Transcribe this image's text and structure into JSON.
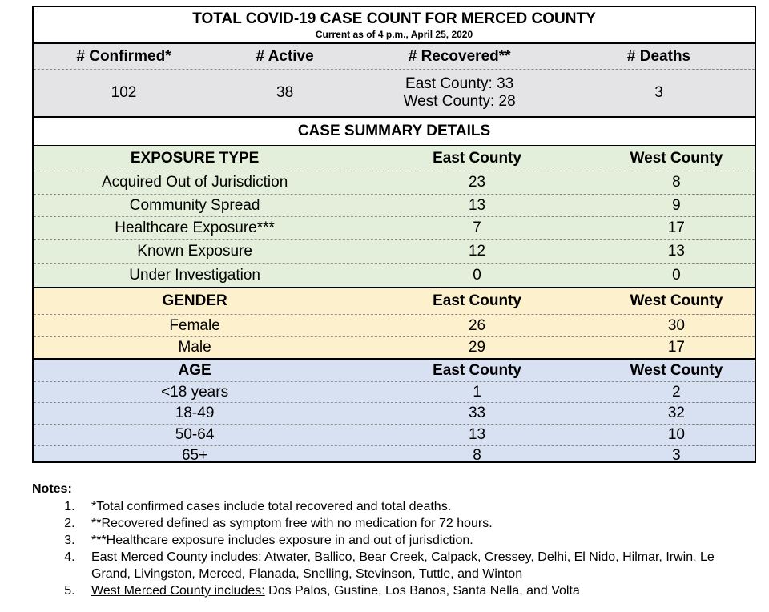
{
  "title": "TOTAL COVID-19 CASE COUNT FOR MERCED COUNTY",
  "subtitle": "Current as of 4 p.m., April 25, 2020",
  "totals": {
    "headers": [
      "# Confirmed*",
      "# Active",
      "# Recovered**",
      "# Deaths"
    ],
    "confirmed": "102",
    "active": "38",
    "recovered_east": "East County: 33",
    "recovered_west": "West County: 28",
    "deaths": "3"
  },
  "summary_title": "CASE SUMMARY DETAILS",
  "exposure": {
    "header": [
      "EXPOSURE TYPE",
      "East County",
      "West County"
    ],
    "rows": [
      [
        "Acquired Out of Jurisdiction",
        "23",
        "8"
      ],
      [
        "Community Spread",
        "13",
        "9"
      ],
      [
        "Healthcare Exposure***",
        "7",
        "17"
      ],
      [
        "Known Exposure",
        "12",
        "13"
      ],
      [
        "Under Investigation",
        "0",
        "0"
      ]
    ]
  },
  "gender": {
    "header": [
      "GENDER",
      "East County",
      "West County"
    ],
    "rows": [
      [
        "Female",
        "26",
        "30"
      ],
      [
        "Male",
        "29",
        "17"
      ]
    ]
  },
  "age": {
    "header": [
      "AGE",
      "East County",
      "West County"
    ],
    "rows": [
      [
        "<18 years",
        "1",
        "2"
      ],
      [
        "18-49",
        "33",
        "32"
      ],
      [
        "50-64",
        "13",
        "10"
      ],
      [
        "65+",
        "8",
        "3"
      ]
    ]
  },
  "notes": {
    "title": "Notes:",
    "items": [
      "*Total confirmed cases include total recovered and total deaths.",
      "**Recovered defined as symptom free with no medication for 72 hours.",
      "***Healthcare exposure includes exposure in and out of jurisdiction."
    ],
    "east_label": "East Merced County includes:",
    "east_text": " Atwater, Ballico, Bear Creek, Calpack, Cressey, Delhi, El Nido, Hilmar, Irwin, Le Grand, Livingston, Merced, Planada, Snelling, Stevinson, Tuttle, and Winton",
    "west_label": "West Merced County includes:",
    "west_text": " Dos Palos, Gustine, Los Banos, Santa Nella, and Volta"
  }
}
